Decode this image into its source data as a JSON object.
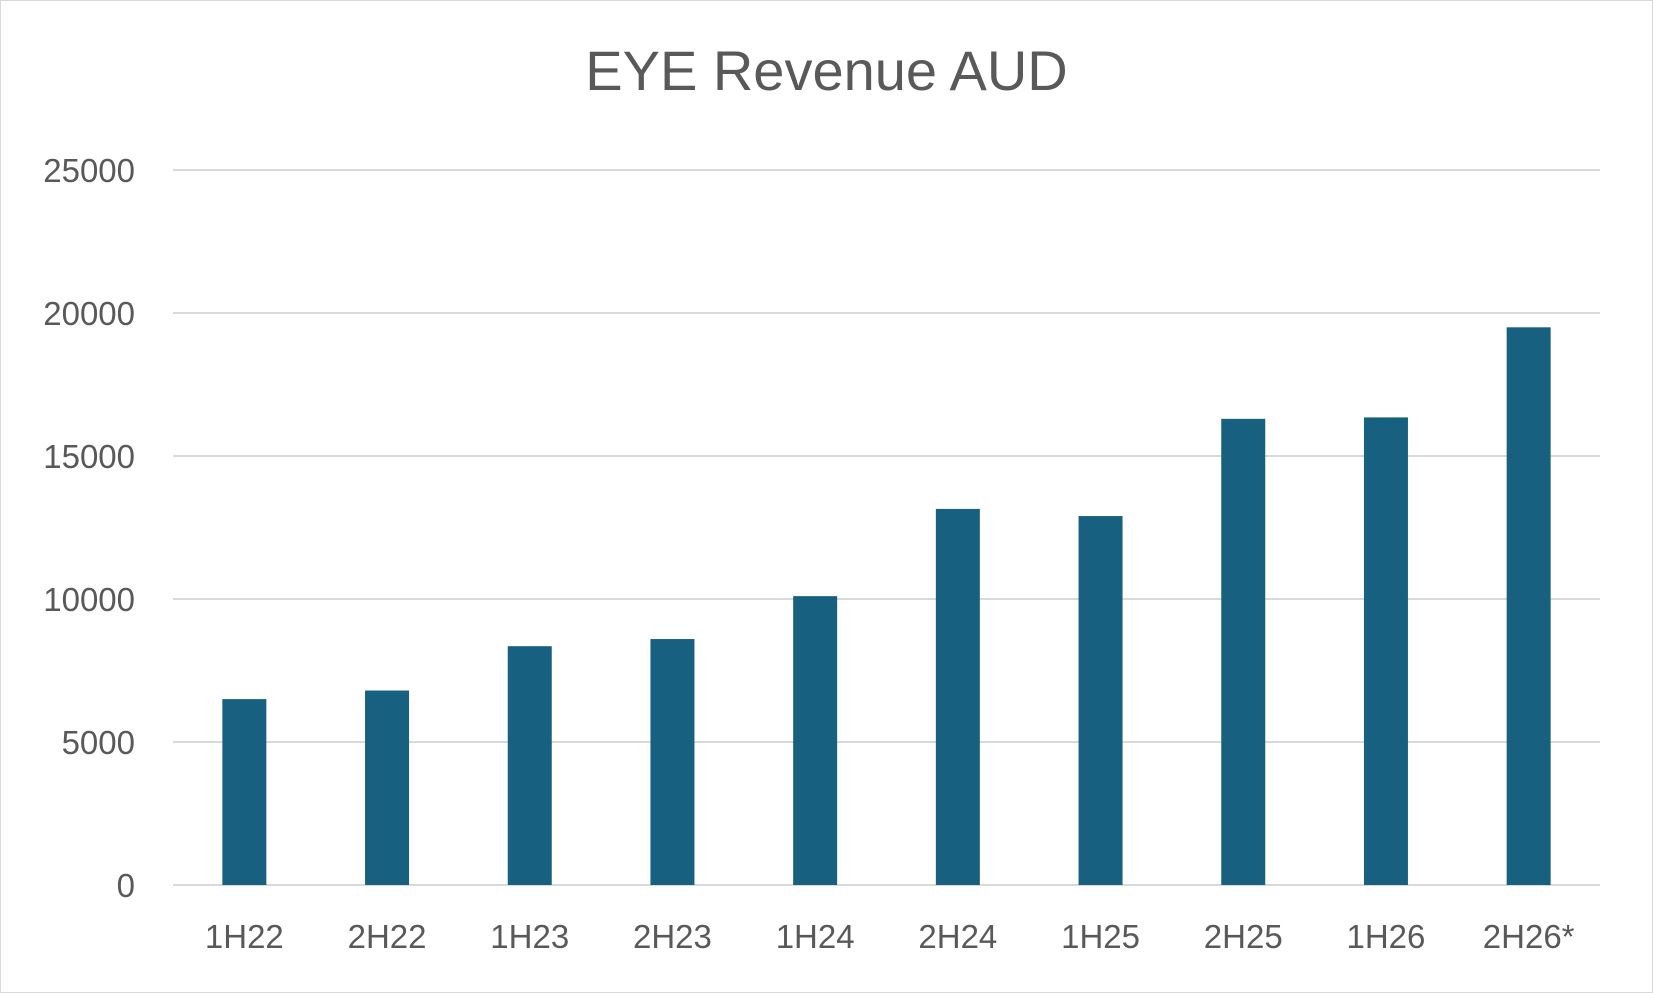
{
  "chart_data": {
    "type": "bar",
    "title": "EYE Revenue AUD",
    "xlabel": "",
    "ylabel": "",
    "categories": [
      "1H22",
      "2H22",
      "1H23",
      "2H23",
      "1H24",
      "2H24",
      "1H25",
      "2H25",
      "1H26",
      "2H26*"
    ],
    "values": [
      6500,
      6800,
      8350,
      8600,
      10100,
      13150,
      12900,
      16300,
      16350,
      19500
    ],
    "ylim": [
      0,
      25000
    ],
    "yticks": [
      0,
      5000,
      10000,
      15000,
      20000,
      25000
    ],
    "grid": true,
    "legend": "none",
    "colors": {
      "bar": "#17607f",
      "grid": "#d9d9d9",
      "text": "#595959"
    }
  }
}
